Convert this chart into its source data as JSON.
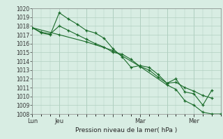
{
  "xlabel": "Pression niveau de la mer( hPa )",
  "ylim": [
    1008,
    1020
  ],
  "yticks": [
    1008,
    1009,
    1010,
    1011,
    1012,
    1013,
    1014,
    1015,
    1016,
    1017,
    1018,
    1019,
    1020
  ],
  "xtick_labels": [
    "Lun",
    "Jeu",
    "",
    "",
    "Mar",
    "",
    "Mer"
  ],
  "xtick_positions": [
    0,
    12,
    24,
    36,
    48,
    60,
    72
  ],
  "xlim": [
    0,
    84
  ],
  "bg_color": "#d8ede3",
  "grid_color": "#b0cfc0",
  "line_color": "#1a6b2a",
  "series": [
    [
      0,
      1017.8,
      4,
      1017.2,
      8,
      1017.0,
      12,
      1019.5,
      16,
      1018.8,
      20,
      1018.2,
      24,
      1017.5,
      28,
      1017.2,
      32,
      1016.6,
      36,
      1015.4,
      40,
      1014.5,
      44,
      1013.3,
      48,
      1013.5,
      52,
      1013.3,
      56,
      1012.5,
      60,
      1011.5,
      64,
      1012.0,
      68,
      1010.5,
      72,
      1010.3,
      76,
      1009.0,
      80,
      1010.7
    ],
    [
      0,
      1017.8,
      4,
      1017.3,
      8,
      1017.1,
      12,
      1018.0,
      16,
      1017.5,
      20,
      1017.0,
      24,
      1016.5,
      28,
      1016.0,
      32,
      1015.6,
      36,
      1015.0,
      40,
      1014.8,
      44,
      1014.2,
      48,
      1013.4,
      52,
      1013.0,
      56,
      1012.2,
      60,
      1011.5,
      64,
      1011.6,
      68,
      1011.0,
      72,
      1010.6,
      76,
      1010.1,
      80,
      1009.8
    ],
    [
      0,
      1017.8,
      12,
      1017.0,
      24,
      1016.2,
      36,
      1015.2,
      48,
      1013.4,
      60,
      1011.3,
      64,
      1010.8,
      68,
      1009.5,
      72,
      1009.0,
      76,
      1008.2,
      80,
      1008.0,
      84,
      1008.0
    ]
  ]
}
